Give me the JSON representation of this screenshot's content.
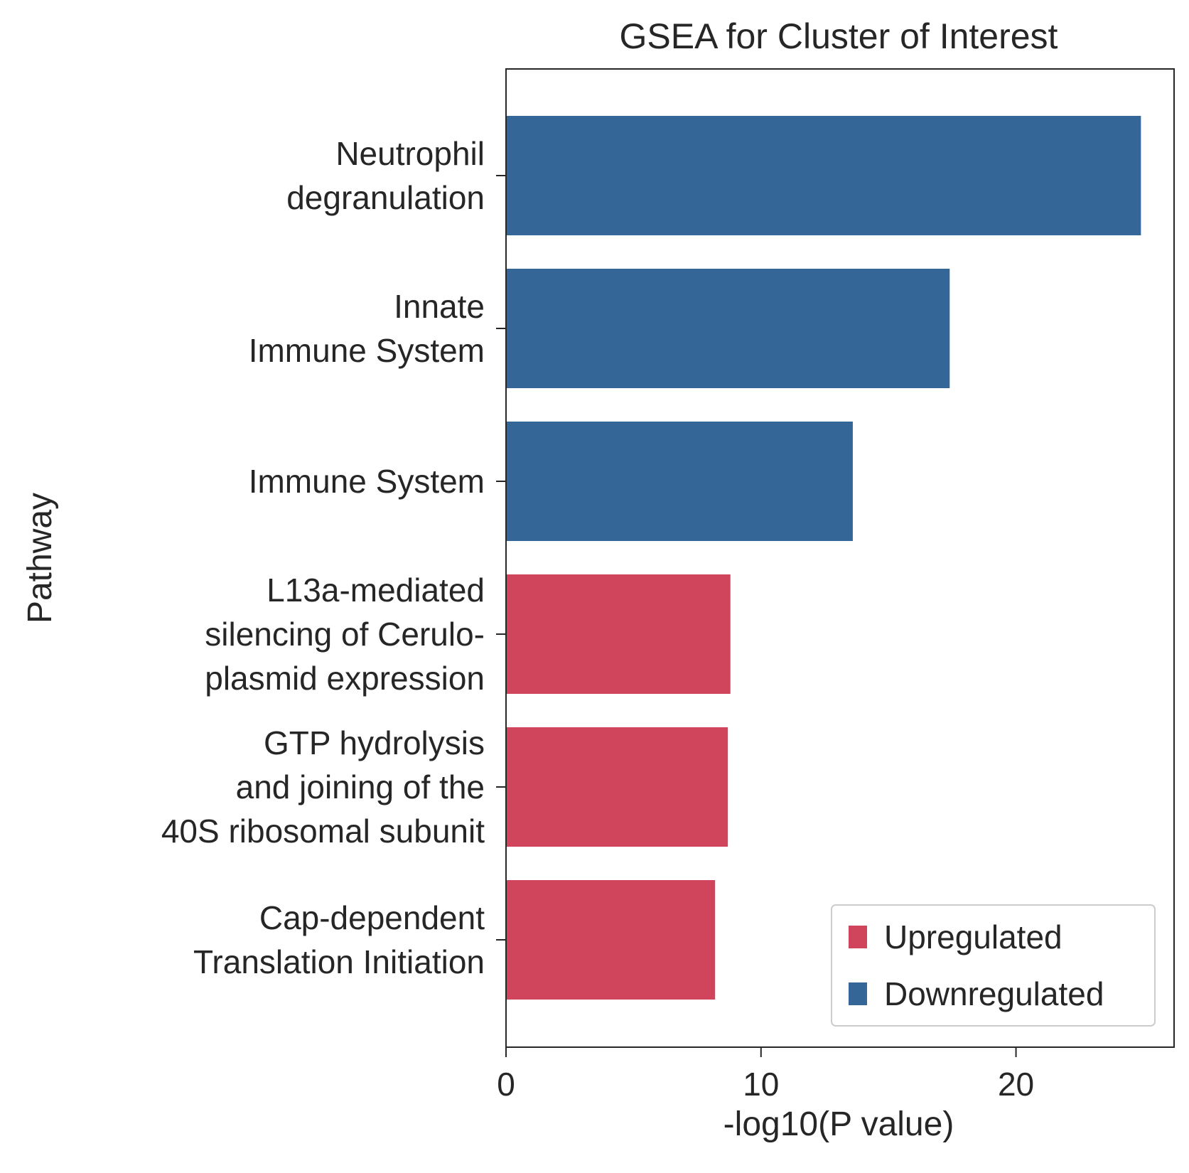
{
  "chart_data": {
    "type": "bar",
    "orientation": "horizontal",
    "title": "GSEA for Cluster of Interest",
    "xlabel": "-log10(P value)",
    "ylabel": "Pathway",
    "xlim": [
      0,
      26.2
    ],
    "xticks": [
      0,
      10,
      20
    ],
    "grid": false,
    "legend_position": "lower-right",
    "categories": [
      [
        "Neutrophil",
        "degranulation"
      ],
      [
        "Innate",
        "Immune System"
      ],
      [
        "Immune System"
      ],
      [
        "L13a-mediated",
        "silencing of Cerulo-",
        "plasmid expression"
      ],
      [
        "GTP hydrolysis",
        "and joining of the",
        "40S ribosomal subunit"
      ],
      [
        "Cap-dependent",
        "Translation Initiation"
      ]
    ],
    "values": [
      24.9,
      17.4,
      13.6,
      8.8,
      8.7,
      8.2
    ],
    "direction": [
      "Downregulated",
      "Downregulated",
      "Downregulated",
      "Upregulated",
      "Upregulated",
      "Upregulated"
    ],
    "legend": [
      {
        "label": "Upregulated",
        "color": "#d0445c"
      },
      {
        "label": "Downregulated",
        "color": "#346698"
      }
    ],
    "colors": {
      "Upregulated": "#d0445c",
      "Downregulated": "#346698"
    }
  }
}
